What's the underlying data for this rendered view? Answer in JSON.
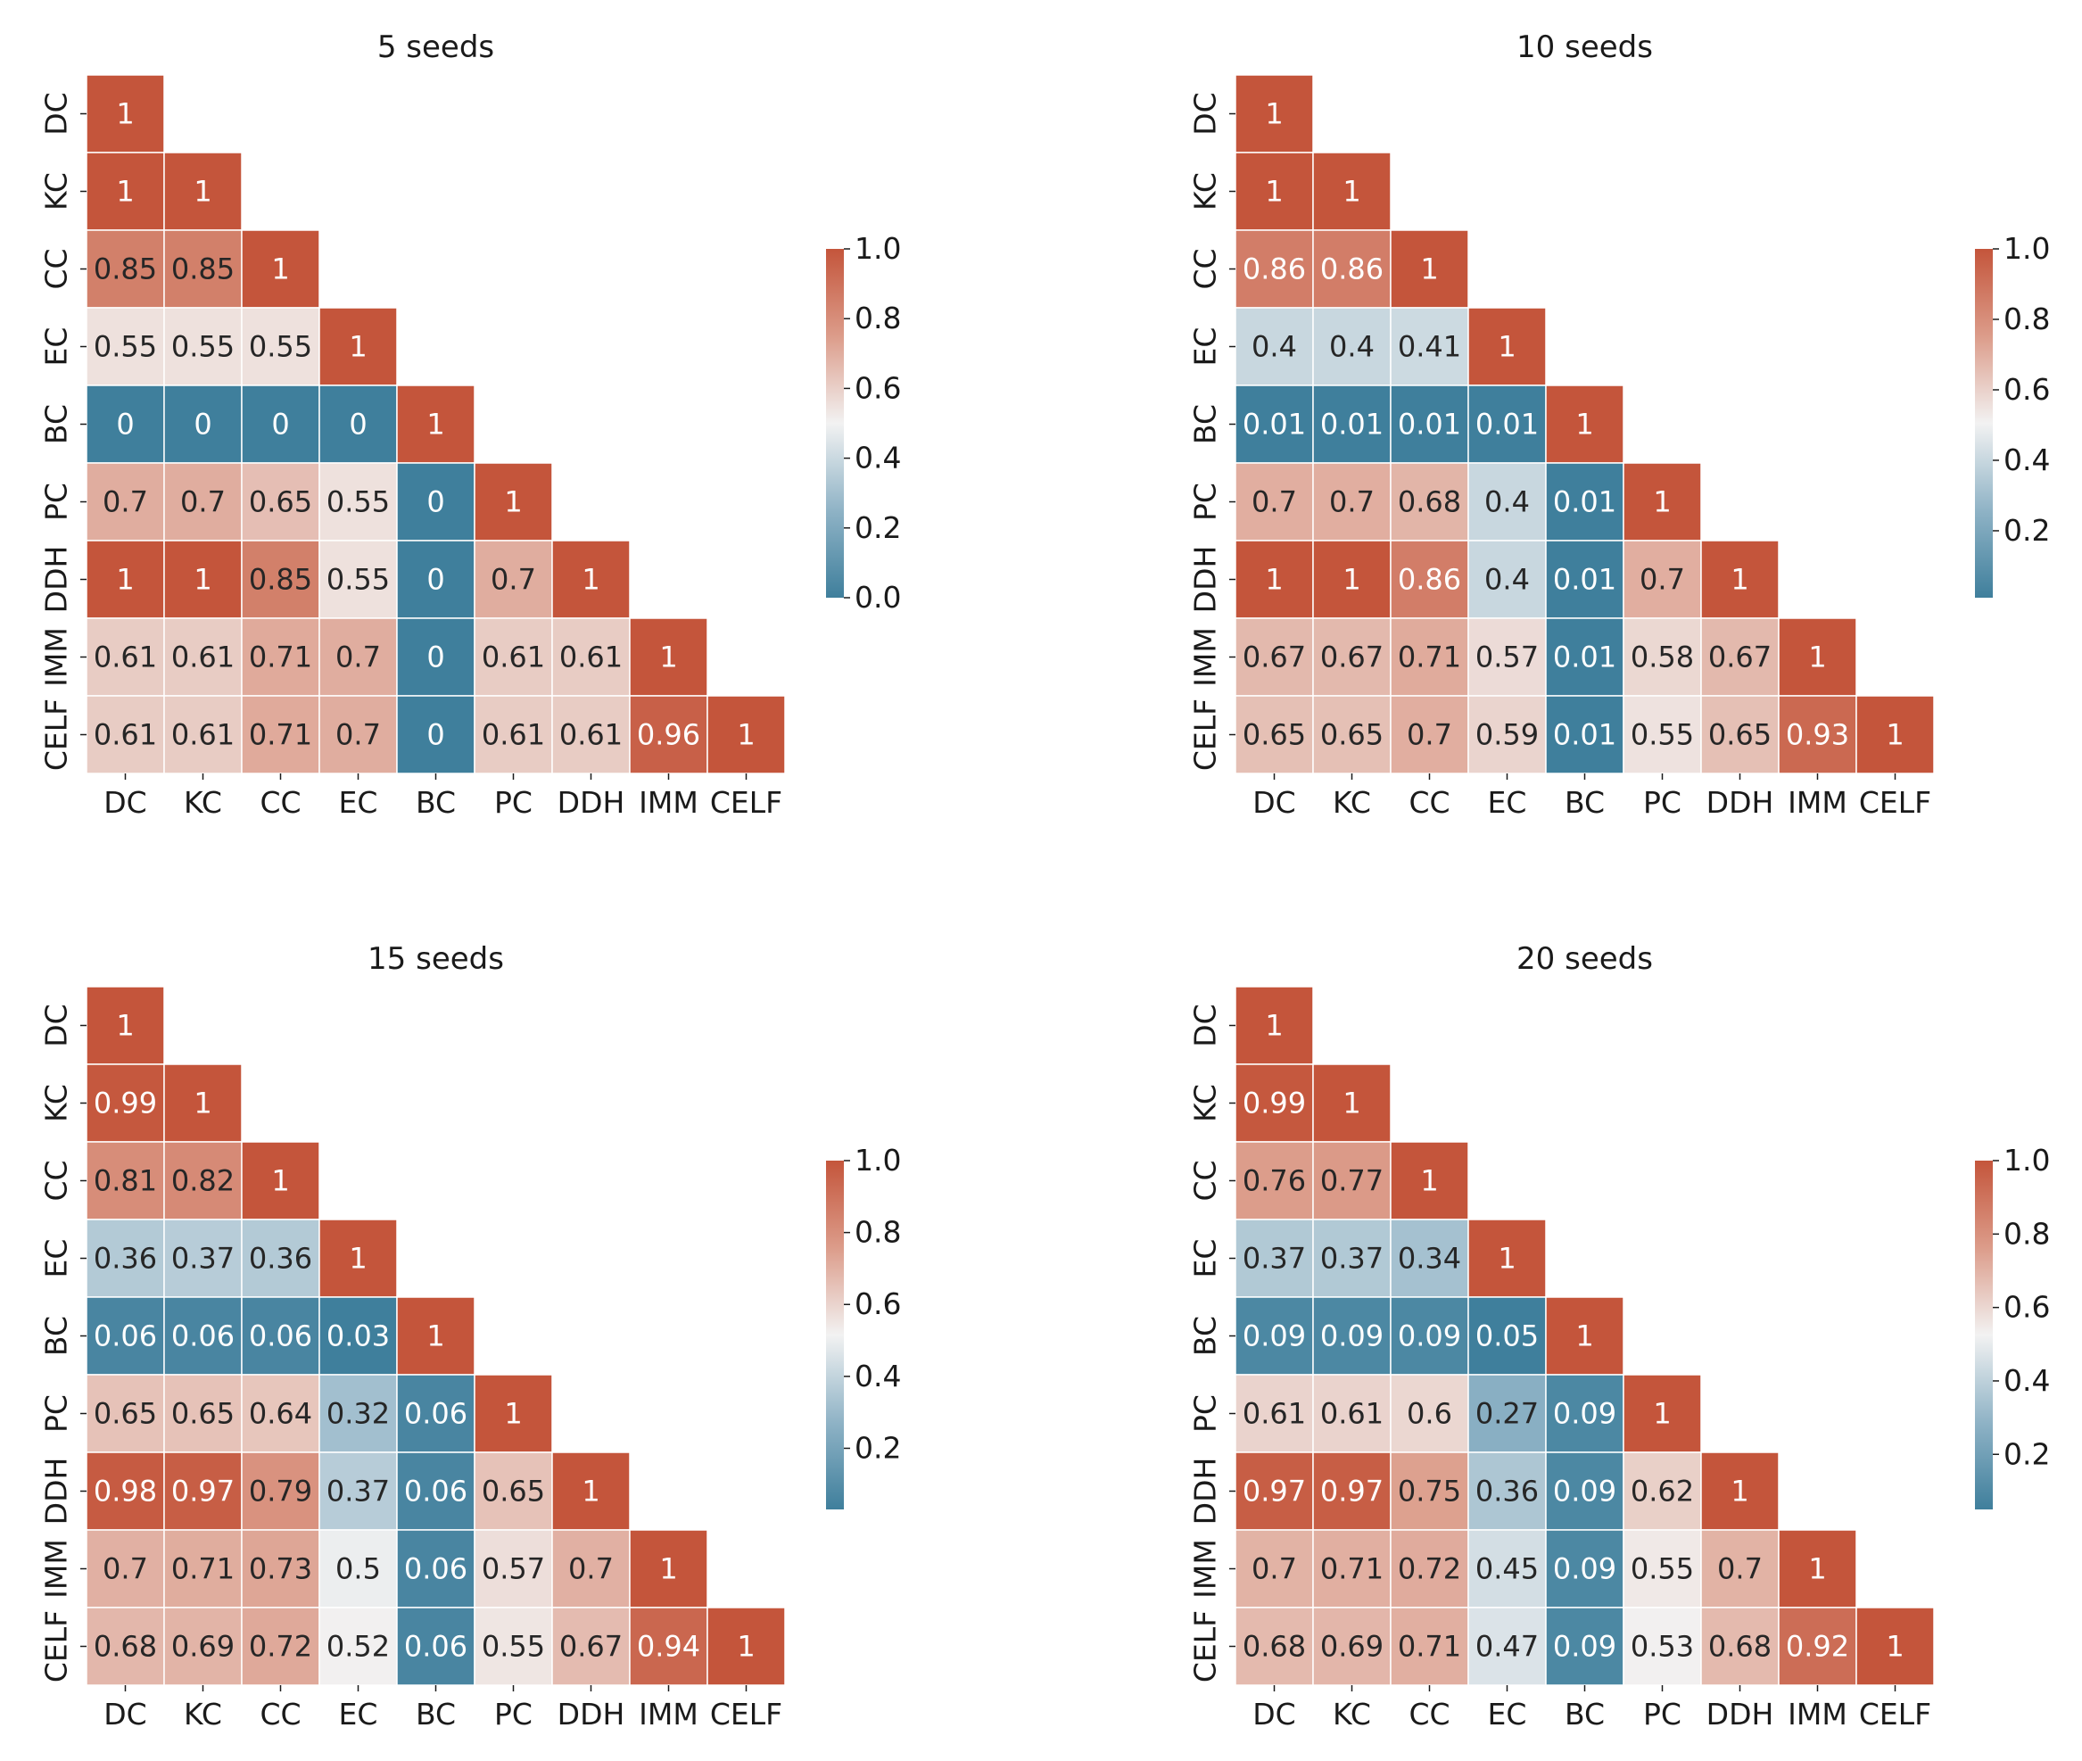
{
  "chart_data": [
    {
      "type": "heatmap",
      "title": "5 seeds",
      "labels": [
        "DC",
        "KC",
        "CC",
        "EC",
        "BC",
        "PC",
        "DDH",
        "IMM",
        "CELF"
      ],
      "matrix": [
        [
          "1"
        ],
        [
          "1",
          "1"
        ],
        [
          "0.85",
          "0.85",
          "1"
        ],
        [
          "0.55",
          "0.55",
          "0.55",
          "1"
        ],
        [
          "0",
          "0",
          "0",
          "0",
          "1"
        ],
        [
          "0.7",
          "0.7",
          "0.65",
          "0.55",
          "0",
          "1"
        ],
        [
          "1",
          "1",
          "0.85",
          "0.55",
          "0",
          "0.7",
          "1"
        ],
        [
          "0.61",
          "0.61",
          "0.71",
          "0.7",
          "0",
          "0.61",
          "0.61",
          "1"
        ],
        [
          "0.61",
          "0.61",
          "0.71",
          "0.7",
          "0",
          "0.61",
          "0.61",
          "0.96",
          "1"
        ]
      ],
      "colorbar": {
        "min": 0.0,
        "max": 1.0,
        "ticks": [
          "0.0",
          "0.2",
          "0.4",
          "0.6",
          "0.8",
          "1.0"
        ]
      }
    },
    {
      "type": "heatmap",
      "title": "10 seeds",
      "labels": [
        "DC",
        "KC",
        "CC",
        "EC",
        "BC",
        "PC",
        "DDH",
        "IMM",
        "CELF"
      ],
      "matrix": [
        [
          "1"
        ],
        [
          "1",
          "1"
        ],
        [
          "0.86",
          "0.86",
          "1"
        ],
        [
          "0.4",
          "0.4",
          "0.41",
          "1"
        ],
        [
          "0.01",
          "0.01",
          "0.01",
          "0.01",
          "1"
        ],
        [
          "0.7",
          "0.7",
          "0.68",
          "0.4",
          "0.01",
          "1"
        ],
        [
          "1",
          "1",
          "0.86",
          "0.4",
          "0.01",
          "0.7",
          "1"
        ],
        [
          "0.67",
          "0.67",
          "0.71",
          "0.57",
          "0.01",
          "0.58",
          "0.67",
          "1"
        ],
        [
          "0.65",
          "0.65",
          "0.7",
          "0.59",
          "0.01",
          "0.55",
          "0.65",
          "0.93",
          "1"
        ]
      ],
      "colorbar": {
        "min": 0.01,
        "max": 1.0,
        "ticks": [
          "0.2",
          "0.4",
          "0.6",
          "0.8",
          "1.0"
        ]
      }
    },
    {
      "type": "heatmap",
      "title": "15 seeds",
      "labels": [
        "DC",
        "KC",
        "CC",
        "EC",
        "BC",
        "PC",
        "DDH",
        "IMM",
        "CELF"
      ],
      "matrix": [
        [
          "1"
        ],
        [
          "0.99",
          "1"
        ],
        [
          "0.81",
          "0.82",
          "1"
        ],
        [
          "0.36",
          "0.37",
          "0.36",
          "1"
        ],
        [
          "0.06",
          "0.06",
          "0.06",
          "0.03",
          "1"
        ],
        [
          "0.65",
          "0.65",
          "0.64",
          "0.32",
          "0.06",
          "1"
        ],
        [
          "0.98",
          "0.97",
          "0.79",
          "0.37",
          "0.06",
          "0.65",
          "1"
        ],
        [
          "0.7",
          "0.71",
          "0.73",
          "0.5",
          "0.06",
          "0.57",
          "0.7",
          "1"
        ],
        [
          "0.68",
          "0.69",
          "0.72",
          "0.52",
          "0.06",
          "0.55",
          "0.67",
          "0.94",
          "1"
        ]
      ],
      "colorbar": {
        "min": 0.03,
        "max": 1.0,
        "ticks": [
          "0.2",
          "0.4",
          "0.6",
          "0.8",
          "1.0"
        ]
      }
    },
    {
      "type": "heatmap",
      "title": "20 seeds",
      "labels": [
        "DC",
        "KC",
        "CC",
        "EC",
        "BC",
        "PC",
        "DDH",
        "IMM",
        "CELF"
      ],
      "matrix": [
        [
          "1"
        ],
        [
          "0.99",
          "1"
        ],
        [
          "0.76",
          "0.77",
          "1"
        ],
        [
          "0.37",
          "0.37",
          "0.34",
          "1"
        ],
        [
          "0.09",
          "0.09",
          "0.09",
          "0.05",
          "1"
        ],
        [
          "0.61",
          "0.61",
          "0.6",
          "0.27",
          "0.09",
          "1"
        ],
        [
          "0.97",
          "0.97",
          "0.75",
          "0.36",
          "0.09",
          "0.62",
          "1"
        ],
        [
          "0.7",
          "0.71",
          "0.72",
          "0.45",
          "0.09",
          "0.55",
          "0.7",
          "1"
        ],
        [
          "0.68",
          "0.69",
          "0.71",
          "0.47",
          "0.09",
          "0.53",
          "0.68",
          "0.92",
          "1"
        ]
      ],
      "colorbar": {
        "min": 0.05,
        "max": 1.0,
        "ticks": [
          "0.2",
          "0.4",
          "0.6",
          "0.8",
          "1.0"
        ]
      }
    }
  ]
}
